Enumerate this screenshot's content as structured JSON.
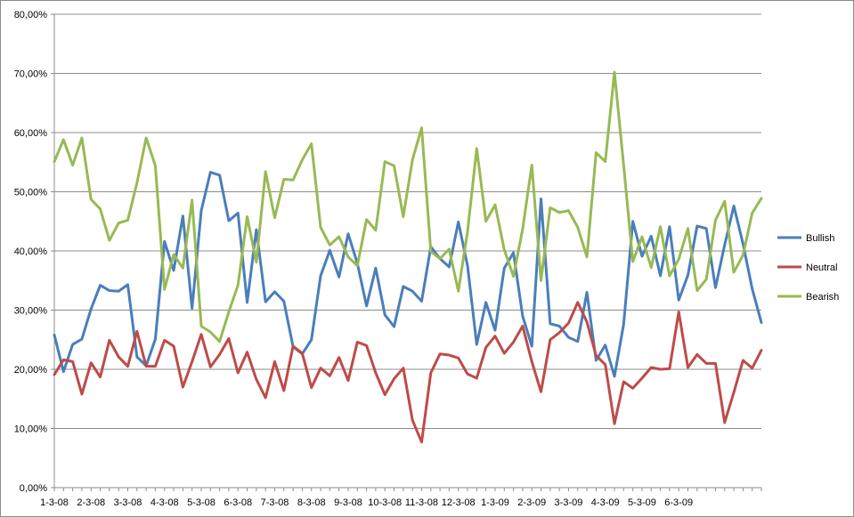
{
  "chart_data": {
    "type": "line",
    "title": "",
    "xlabel": "",
    "ylabel": "",
    "ylim": [
      0,
      80
    ],
    "y_ticks": [
      0,
      10,
      20,
      30,
      40,
      50,
      60,
      70,
      80
    ],
    "y_tick_labels": [
      "0,00%",
      "10,00%",
      "20,00%",
      "30,00%",
      "40,00%",
      "50,00%",
      "60,00%",
      "70,00%",
      "80,00%"
    ],
    "x_tick_labels": [
      "1-3-08",
      "2-3-08",
      "3-3-08",
      "4-3-08",
      "5-3-08",
      "6-3-08",
      "7-3-08",
      "8-3-08",
      "9-3-08",
      "10-3-08",
      "11-3-08",
      "12-3-08",
      "1-3-09",
      "2-3-09",
      "3-3-09",
      "4-3-09",
      "5-3-09",
      "6-3-09"
    ],
    "grid": "horizontal",
    "legend_position": "right",
    "points_per_month": 4,
    "series": [
      {
        "name": "Bullish",
        "color": "#4a7ebb",
        "values": [
          25.8,
          19.6,
          24.2,
          25.1,
          30.2,
          34.2,
          33.3,
          33.2,
          34.3,
          22.1,
          20.6,
          25.1,
          41.6,
          36.7,
          45.9,
          30.3,
          46.8,
          53.3,
          52.8,
          45.1,
          46.4,
          31.3,
          43.6,
          31.4,
          33.1,
          31.5,
          23.8,
          22.6,
          25.0,
          35.8,
          40.1,
          35.6,
          42.9,
          37.9,
          30.7,
          37.1,
          29.2,
          27.2,
          34.0,
          33.2,
          31.5,
          40.7,
          38.7,
          37.3,
          44.9,
          37.5,
          24.2,
          31.3,
          26.6,
          37.1,
          39.7,
          29.0,
          23.9,
          48.8,
          27.7,
          27.3,
          25.4,
          24.7,
          33.0,
          21.5,
          24.1,
          18.8,
          27.6,
          45.0,
          39.1,
          42.5,
          35.8,
          44.1,
          31.7,
          35.9,
          44.2,
          43.8,
          33.8,
          41.0,
          47.6,
          41.2,
          33.6,
          27.9
        ]
      },
      {
        "name": "Neutral",
        "color": "#be4b48",
        "values": [
          19.1,
          21.6,
          21.3,
          15.8,
          21.1,
          18.7,
          24.9,
          22.1,
          20.5,
          26.4,
          20.5,
          20.5,
          24.9,
          23.9,
          17.0,
          21.3,
          25.9,
          20.4,
          22.5,
          25.2,
          19.4,
          22.9,
          18.3,
          15.2,
          21.3,
          16.4,
          23.9,
          22.7,
          16.9,
          20.2,
          18.9,
          22.0,
          18.1,
          24.6,
          24.0,
          19.4,
          15.7,
          18.4,
          20.2,
          11.4,
          7.7,
          19.4,
          22.6,
          22.4,
          21.9,
          19.2,
          18.5,
          23.7,
          25.6,
          22.7,
          24.6,
          27.3,
          21.3,
          16.2,
          25.0,
          26.2,
          27.8,
          31.3,
          28.0,
          22.3,
          20.8,
          10.8,
          17.9,
          16.8,
          18.5,
          20.3,
          20.0,
          20.1,
          29.7,
          20.3,
          22.5,
          21.0,
          21.0,
          11.0,
          16.1,
          21.5,
          20.2,
          23.2
        ]
      },
      {
        "name": "Bearish",
        "color": "#98b954",
        "values": [
          55.1,
          58.8,
          54.5,
          59.1,
          48.7,
          47.1,
          41.8,
          44.7,
          45.2,
          51.5,
          59.1,
          54.4,
          33.5,
          39.4,
          37.1,
          48.6,
          27.3,
          26.3,
          24.7,
          29.7,
          34.2,
          45.8,
          38.1,
          53.4,
          45.6,
          52.1,
          52.0,
          55.4,
          58.1,
          44.0,
          41.0,
          42.4,
          39.0,
          37.5,
          45.3,
          43.5,
          55.1,
          54.4,
          45.8,
          55.4,
          60.8,
          39.9,
          38.7,
          40.3,
          33.2,
          43.3,
          57.3,
          45.0,
          47.8,
          40.2,
          35.7,
          43.7,
          54.5,
          35.0,
          47.3,
          46.5,
          46.8,
          44.0,
          39.0,
          56.6,
          55.1,
          70.2,
          54.5,
          38.2,
          42.4,
          37.2,
          44.1,
          35.8,
          38.6,
          43.8,
          33.3,
          35.2,
          45.2,
          48.4,
          36.4,
          39.3,
          46.4,
          48.9
        ]
      }
    ]
  }
}
